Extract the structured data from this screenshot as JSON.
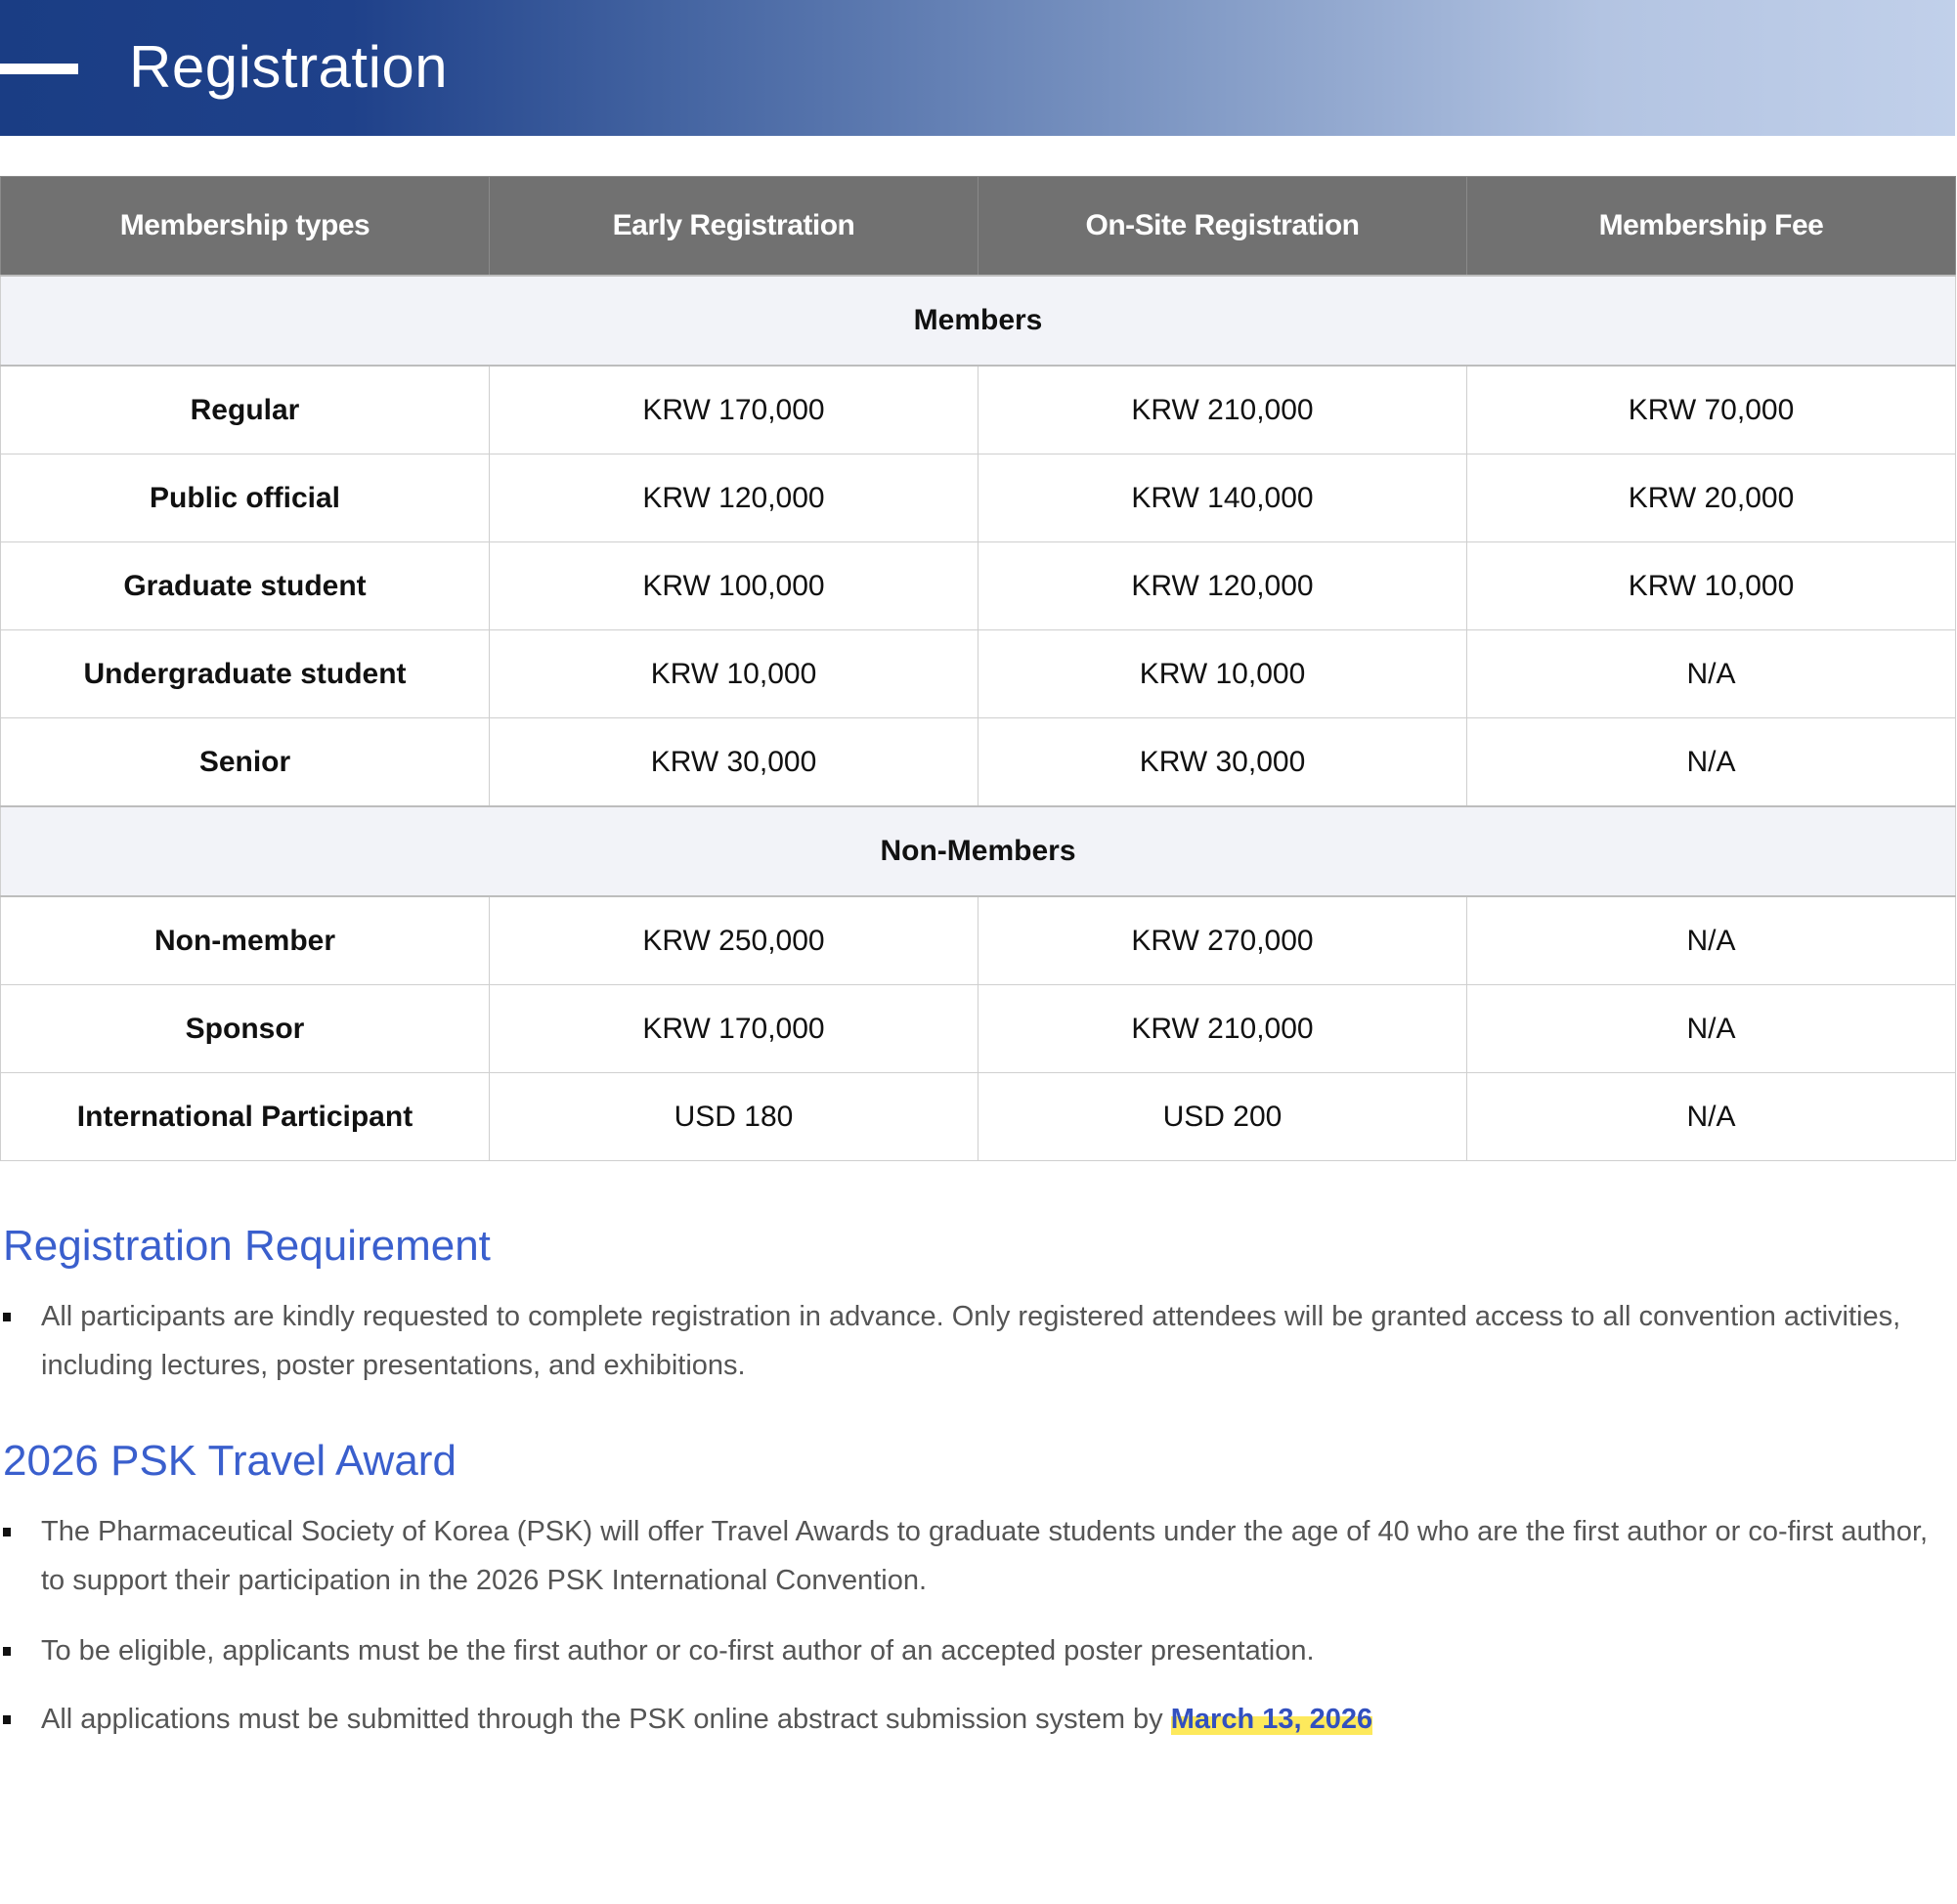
{
  "header": {
    "title": "Registration"
  },
  "table": {
    "columns": [
      "Membership types",
      "Early Registration",
      "On-Site Registration",
      "Membership Fee"
    ],
    "sections": [
      {
        "title": "Members",
        "rows": [
          [
            "Regular",
            "KRW 170,000",
            "KRW 210,000",
            "KRW 70,000"
          ],
          [
            "Public official",
            "KRW 120,000",
            "KRW 140,000",
            "KRW 20,000"
          ],
          [
            "Graduate student",
            "KRW 100,000",
            "KRW 120,000",
            "KRW 10,000"
          ],
          [
            "Undergraduate student",
            "KRW 10,000",
            "KRW 10,000",
            "N/A"
          ],
          [
            "Senior",
            "KRW 30,000",
            "KRW 30,000",
            "N/A"
          ]
        ]
      },
      {
        "title": "Non-Members",
        "rows": [
          [
            "Non-member",
            "KRW 250,000",
            "KRW 270,000",
            "N/A"
          ],
          [
            "Sponsor",
            "KRW 170,000",
            "KRW 210,000",
            "N/A"
          ],
          [
            "International Participant",
            "USD 180",
            "USD 200",
            "N/A"
          ]
        ]
      }
    ]
  },
  "requirement": {
    "heading": "Registration Requirement",
    "items": [
      "All participants are kindly requested to complete registration in advance. Only registered attendees will be granted access to all convention activities, including lectures, poster presentations, and exhibitions."
    ]
  },
  "travel_award": {
    "heading": "2026 PSK Travel Award",
    "items": [
      "The Pharmaceutical Society of Korea (PSK) will offer Travel Awards to graduate students under the age of 40 who are the first author or co-first author, to support their participation in the 2026 PSK International Convention.",
      "To be eligible, applicants must be the first author or co-first author of an accepted poster presentation.",
      "All applications must be submitted through the PSK online abstract submission system by"
    ],
    "deadline": "March 13, 2026"
  },
  "colors": {
    "banner_dark": "#1a3d84",
    "banner_light": "#c1d0ea",
    "table_header": "#717171",
    "section_bg": "#f2f3f8",
    "heading": "#3a5fcd",
    "highlight": "#fde95c"
  }
}
